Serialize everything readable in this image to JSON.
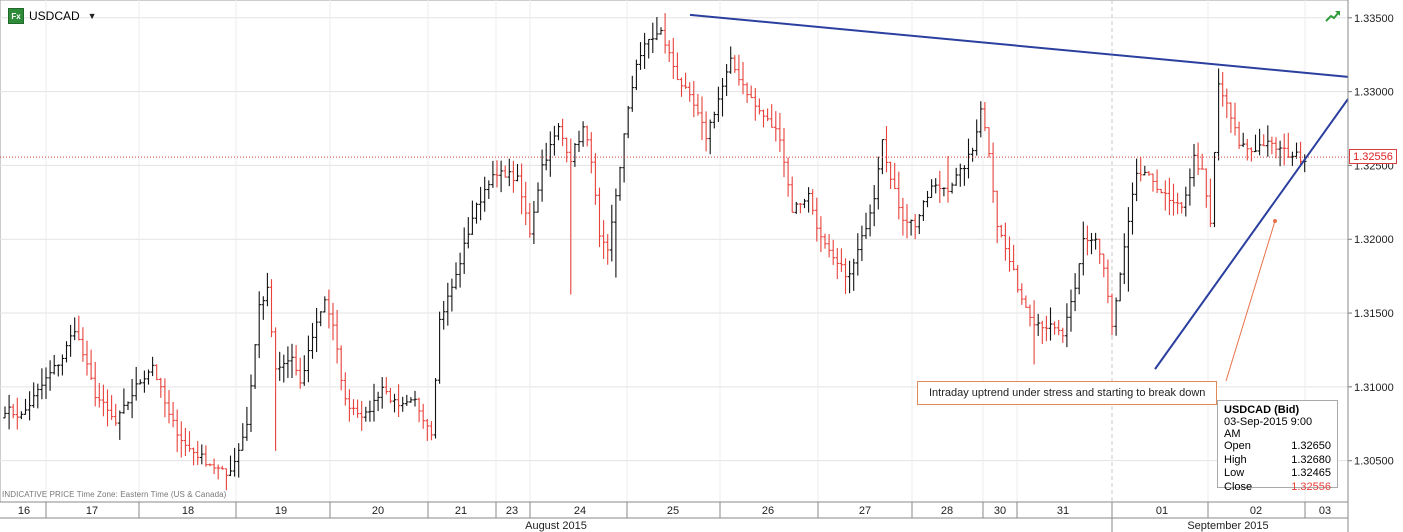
{
  "symbol": {
    "name": "USDCAD",
    "icon": "fx-icon",
    "icon_text": "Fx"
  },
  "footer_note": "INDICATIVE PRICE   Time Zone: Eastern Time (US & Canada)",
  "annotation": "Intraday uptrend under stress and starting to break down",
  "current_price": "1.32556",
  "info": {
    "title": "USDCAD (Bid)",
    "datetime": "03-Sep-2015 9:00 AM",
    "rows": [
      {
        "label": "Open",
        "value": "1.32650"
      },
      {
        "label": "High",
        "value": "1.32680"
      },
      {
        "label": "Low",
        "value": "1.32465"
      },
      {
        "label": "Close",
        "value": "1.32556"
      }
    ]
  },
  "chart_data": {
    "type": "candlestick",
    "instrument": "USDCAD",
    "ylim": [
      1.3022,
      1.3358
    ],
    "y_ticks": [
      "1.30500",
      "1.31000",
      "1.31500",
      "1.32000",
      "1.32500",
      "1.33000",
      "1.33500"
    ],
    "x_day_labels": [
      "16",
      "17",
      "18",
      "19",
      "20",
      "21",
      "23",
      "24",
      "25",
      "26",
      "27",
      "28",
      "30",
      "31",
      "01",
      "02",
      "03"
    ],
    "x_month_labels": [
      "August 2015",
      "September 2015"
    ],
    "current_price_line": 1.32556,
    "path_anchors": [
      [
        0,
        1.3085
      ],
      [
        4,
        1.308
      ],
      [
        10,
        1.3105
      ],
      [
        14,
        1.312
      ],
      [
        17,
        1.314
      ],
      [
        22,
        1.3095
      ],
      [
        27,
        1.3075
      ],
      [
        32,
        1.31
      ],
      [
        36,
        1.3115
      ],
      [
        40,
        1.308
      ],
      [
        44,
        1.306
      ],
      [
        49,
        1.305
      ],
      [
        54,
        1.304
      ],
      [
        56,
        1.305
      ],
      [
        59,
        1.3075
      ],
      [
        62,
        1.3155
      ],
      [
        64,
        1.3165
      ],
      [
        66,
        1.311
      ],
      [
        70,
        1.312
      ],
      [
        72,
        1.31
      ],
      [
        75,
        1.3135
      ],
      [
        78,
        1.316
      ],
      [
        80,
        1.314
      ],
      [
        83,
        1.309
      ],
      [
        88,
        1.308
      ],
      [
        92,
        1.31
      ],
      [
        96,
        1.3085
      ],
      [
        100,
        1.309
      ],
      [
        104,
        1.307
      ],
      [
        106,
        1.3145
      ],
      [
        110,
        1.3175
      ],
      [
        114,
        1.3215
      ],
      [
        118,
        1.324
      ],
      [
        122,
        1.3245
      ],
      [
        125,
        1.324
      ],
      [
        128,
        1.3205
      ],
      [
        131,
        1.325
      ],
      [
        135,
        1.3275
      ],
      [
        138,
        1.3255
      ],
      [
        141,
        1.3275
      ],
      [
        143,
        1.3255
      ],
      [
        145,
        1.32
      ],
      [
        147,
        1.319
      ],
      [
        151,
        1.327
      ],
      [
        154,
        1.332
      ],
      [
        157,
        1.3335
      ],
      [
        160,
        1.334
      ],
      [
        164,
        1.331
      ],
      [
        168,
        1.329
      ],
      [
        171,
        1.327
      ],
      [
        174,
        1.3295
      ],
      [
        177,
        1.332
      ],
      [
        180,
        1.3305
      ],
      [
        183,
        1.329
      ],
      [
        186,
        1.328
      ],
      [
        189,
        1.327
      ],
      [
        192,
        1.322
      ],
      [
        196,
        1.323
      ],
      [
        199,
        1.32
      ],
      [
        202,
        1.3185
      ],
      [
        206,
        1.3175
      ],
      [
        209,
        1.32
      ],
      [
        212,
        1.323
      ],
      [
        214,
        1.327
      ],
      [
        216,
        1.324
      ],
      [
        219,
        1.3215
      ],
      [
        222,
        1.321
      ],
      [
        226,
        1.3235
      ],
      [
        230,
        1.3235
      ],
      [
        233,
        1.3245
      ],
      [
        236,
        1.326
      ],
      [
        238,
        1.329
      ],
      [
        240,
        1.326
      ],
      [
        242,
        1.321
      ],
      [
        245,
        1.3185
      ],
      [
        248,
        1.316
      ],
      [
        251,
        1.3145
      ],
      [
        255,
        1.314
      ],
      [
        258,
        1.3135
      ],
      [
        261,
        1.3165
      ],
      [
        263,
        1.32
      ],
      [
        266,
        1.32
      ],
      [
        268,
        1.318
      ],
      [
        270,
        1.314
      ],
      [
        272,
        1.3175
      ],
      [
        276,
        1.3245
      ],
      [
        280,
        1.324
      ],
      [
        284,
        1.3225
      ],
      [
        287,
        1.322
      ],
      [
        290,
        1.3255
      ],
      [
        292,
        1.3245
      ],
      [
        294,
        1.321
      ],
      [
        296,
        1.3305
      ],
      [
        298,
        1.329
      ],
      [
        301,
        1.3265
      ],
      [
        304,
        1.326
      ],
      [
        307,
        1.3265
      ],
      [
        310,
        1.3262
      ],
      [
        313,
        1.3258
      ],
      [
        317,
        1.3255
      ]
    ],
    "trendlines": [
      {
        "name": "resistance",
        "from": [
          "25 Aug",
          1.3352
        ],
        "to": [
          "03 Sep",
          1.331
        ]
      },
      {
        "name": "uptrend",
        "from": [
          "01 Sep",
          1.3112
        ],
        "to": [
          "03 Sep",
          1.3295
        ]
      }
    ],
    "current_bar": {
      "time": "03-Sep-2015 9:00 AM",
      "open": 1.3265,
      "high": 1.3268,
      "low": 1.32465,
      "close": 1.32556
    },
    "colors": {
      "up": "#111111",
      "down": "#e8413a",
      "trendline": "#2b3f9e",
      "price_line": "#d64040",
      "callout": "#e8714a"
    }
  }
}
